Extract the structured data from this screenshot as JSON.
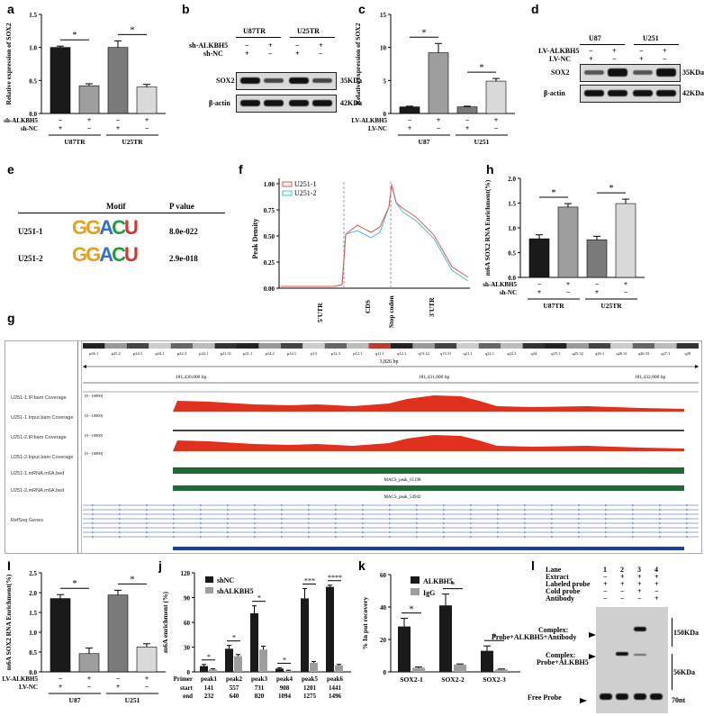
{
  "labels": {
    "a": "a",
    "b": "b",
    "c": "c",
    "d": "d",
    "e": "e",
    "f": "f",
    "g": "g",
    "h": "h",
    "I": "I",
    "j": "j",
    "k": "k",
    "l": "l"
  },
  "sig": "*",
  "panel_a": {
    "chart_data": {
      "type": "bar",
      "ylabel": "Relative expression of SOX2",
      "ylim": [
        0,
        1.5
      ],
      "yticks": [
        "0.0",
        "0.5",
        "1.0",
        "1.5"
      ],
      "values": [
        1.0,
        0.42,
        1.0,
        0.4
      ],
      "errors": [
        0.02,
        0.03,
        0.1,
        0.04
      ],
      "colors": [
        "#1a1a1a",
        "#9e9e9e",
        "#7a7a7a",
        "#d9d9d9"
      ],
      "rows": [
        {
          "label": "sh-ALKBH5",
          "signs": [
            "−",
            "+",
            "−",
            "+"
          ]
        },
        {
          "label": "sh-NC",
          "signs": [
            "+",
            "−",
            "+",
            "−"
          ]
        }
      ],
      "groups": [
        "U87TR",
        "U25TR"
      ]
    }
  },
  "panel_b": {
    "groups": [
      "U87TR",
      "U25TR"
    ],
    "row1_label": "sh-ALKBH5",
    "row2_label": "sh-NC",
    "row1_signs": [
      "−",
      "+",
      "−",
      "+"
    ],
    "row2_signs": [
      "+",
      "−",
      "+",
      "−"
    ],
    "bands": [
      {
        "name": "SOX2",
        "size": "35KDa"
      },
      {
        "name": "β-actin",
        "size": "42KDa"
      }
    ]
  },
  "panel_c": {
    "chart_data": {
      "type": "bar",
      "ylabel": "Relative expression of SOX2",
      "ylim": [
        0,
        15
      ],
      "yticks": [
        "0",
        "5",
        "10",
        "15"
      ],
      "values": [
        1.0,
        9.2,
        1.0,
        4.9
      ],
      "errors": [
        0.1,
        1.4,
        0.1,
        0.4
      ],
      "colors": [
        "#1a1a1a",
        "#9e9e9e",
        "#7a7a7a",
        "#d9d9d9"
      ],
      "rows": [
        {
          "label": "LV-ALKBH5",
          "signs": [
            "−",
            "+",
            "−",
            "+"
          ]
        },
        {
          "label": "LV-NC",
          "signs": [
            "+",
            "−",
            "+",
            "−"
          ]
        }
      ],
      "groups": [
        "U87",
        "U251"
      ]
    }
  },
  "panel_d": {
    "groups": [
      "U87",
      "U251"
    ],
    "row1_label": "LV-ALKBH5",
    "row2_label": "LV-NC",
    "row1_signs": [
      "−",
      "+",
      "−",
      "+"
    ],
    "row2_signs": [
      "+",
      "−",
      "+",
      "−"
    ],
    "bands": [
      {
        "name": "SOX2",
        "size": "35KDa"
      },
      {
        "name": "β-actin",
        "size": "42KDa"
      }
    ]
  },
  "panel_e": {
    "header_motif": "Motif",
    "header_p": "P value",
    "rows": [
      {
        "sample": "U251-1",
        "motif": "GGACU",
        "p": "8.0e-022"
      },
      {
        "sample": "U251-2",
        "motif": "GGACU",
        "p": "2.9e-018"
      }
    ]
  },
  "panel_f": {
    "chart_data": {
      "type": "line",
      "ylabel": "Peak Density",
      "ylim": [
        0,
        1.0
      ],
      "yticks": [
        "0.00",
        "0.25",
        "0.50",
        "0.75",
        "1.00"
      ],
      "xticks": [
        "5'UTR",
        "CDS",
        "Stop codon",
        "3'UTR"
      ],
      "series": [
        {
          "name": "U251-1",
          "color": "#e0524f"
        },
        {
          "name": "U251-2",
          "color": "#3fc2c0"
        }
      ]
    }
  },
  "panel_h": {
    "chart_data": {
      "type": "bar",
      "ylabel": "m6A SOX2 RNA Enrichment(%)",
      "ylim": [
        0,
        2.0
      ],
      "yticks": [
        "0.0",
        "0.5",
        "1.0",
        "1.5",
        "2.0"
      ],
      "values": [
        0.78,
        1.42,
        0.76,
        1.49
      ],
      "errors": [
        0.08,
        0.07,
        0.07,
        0.09
      ],
      "colors": [
        "#1a1a1a",
        "#9e9e9e",
        "#7a7a7a",
        "#d9d9d9"
      ],
      "rows": [
        {
          "label": "sh-ALKBH5",
          "signs": [
            "−",
            "+",
            "−",
            "+"
          ]
        },
        {
          "label": "sh-NC",
          "signs": [
            "+",
            "−",
            "+",
            "−"
          ]
        }
      ],
      "groups": [
        "U87TR",
        "U25TR"
      ]
    }
  },
  "panel_g": {
    "bands": [
      "p26.1",
      "p25.2",
      "p24.3",
      "p24.1",
      "p22.3",
      "p22.1",
      "p21.31",
      "p21.1",
      "p14.2",
      "p14.1",
      "p13",
      "p12.3",
      "p12.1",
      "q11.1",
      "q12.1",
      "q13.12",
      "q13.31",
      "q21.1",
      "q22.1",
      "q22.3",
      "q24",
      "q25.1",
      "q25.32",
      "q26.1",
      "q26.31",
      "q26.33",
      "q27.3",
      "q29"
    ],
    "span": "3,826 bp",
    "coords": [
      "181,430,000 bp",
      "181,431,000 bp",
      "181,432,000 bp"
    ],
    "range": "[0 - 10000]",
    "tracks": [
      "U251-1.IP.bam Coverage",
      "U251-1.Input.bam Coverage",
      "U251-2.IP.bam Coverage",
      "U251-2.Input.bam Coverage",
      "U251-1.mRNA.m6A.bed",
      "U251-2.mRNA.m6A.bed",
      "RefSeq Genes"
    ],
    "peaks": [
      "MACS_peak_61198",
      "MACS_peak_54942"
    ]
  },
  "panel_I": {
    "chart_data": {
      "type": "bar",
      "ylabel": "m6A SOX2 RNA Enrichment(%)",
      "ylim": [
        0,
        2.5
      ],
      "yticks": [
        "0.0",
        "0.5",
        "1.0",
        "1.5",
        "2.0",
        "2.5"
      ],
      "values": [
        1.85,
        0.46,
        1.94,
        0.63
      ],
      "errors": [
        0.1,
        0.14,
        0.12,
        0.08
      ],
      "colors": [
        "#1a1a1a",
        "#9e9e9e",
        "#7a7a7a",
        "#d9d9d9"
      ],
      "rows": [
        {
          "label": "LV-ALKBH5",
          "signs": [
            "−",
            "+",
            "−",
            "+"
          ]
        },
        {
          "label": "LV-NC",
          "signs": [
            "+",
            "−",
            "+",
            "−"
          ]
        }
      ],
      "groups": [
        "U87",
        "U251"
      ]
    }
  },
  "panel_j": {
    "chart_data": {
      "type": "bar",
      "ylabel": "m6A enrichment (%)",
      "ylim": [
        0,
        120
      ],
      "yticks": [
        "0",
        "30",
        "60",
        "90",
        "120"
      ],
      "categories": [
        "peak1",
        "peak2",
        "peak3",
        "peak4",
        "peak5",
        "peak6"
      ],
      "series": [
        {
          "name": "shNC",
          "color": "#1a1a1a",
          "values": [
            7,
            28,
            71,
            4,
            89,
            103
          ],
          "errors": [
            2,
            4,
            9,
            1,
            12,
            2
          ]
        },
        {
          "name": "shALKBH5",
          "color": "#9e9e9e",
          "values": [
            3,
            19,
            27,
            1.5,
            11,
            8
          ],
          "errors": [
            0.8,
            2,
            4,
            0.5,
            1.5,
            1
          ]
        }
      ],
      "sig": [
        "*",
        "*",
        "*",
        "*",
        "***",
        "****"
      ],
      "primer_label": "Primer",
      "start_label": "start",
      "end_label": "end",
      "start": [
        "141",
        "557",
        "731",
        "908",
        "1201",
        "1441"
      ],
      "end": [
        "232",
        "640",
        "820",
        "1094",
        "1275",
        "1496"
      ]
    }
  },
  "panel_k": {
    "chart_data": {
      "type": "bar",
      "ylabel": "% In put recovery",
      "ylim": [
        0,
        60
      ],
      "yticks": [
        "0",
        "20",
        "40",
        "60"
      ],
      "categories": [
        "SOX2-1",
        "SOX2-2",
        "SOX2-3"
      ],
      "series": [
        {
          "name": "ALKBH5",
          "color": "#1a1a1a",
          "values": [
            28,
            41,
            13
          ],
          "errors": [
            5,
            7,
            3
          ]
        },
        {
          "name": "IgG",
          "color": "#9e9e9e",
          "values": [
            2.5,
            4.5,
            1.5
          ],
          "errors": [
            0.5,
            0.4,
            0.3
          ]
        }
      ]
    }
  },
  "panel_l": {
    "rows": [
      {
        "label": "Lane",
        "v": [
          "1",
          "2",
          "3",
          "4"
        ]
      },
      {
        "label": "Extract",
        "v": [
          "−",
          "+",
          "+",
          "+"
        ]
      },
      {
        "label": "Labeled probe",
        "v": [
          "+",
          "+",
          "+",
          "+"
        ]
      },
      {
        "label": "Cold probe",
        "v": [
          "−",
          "−",
          "+",
          "−"
        ]
      },
      {
        "label": "Antibody",
        "v": [
          "−",
          "−",
          "−",
          "+"
        ]
      }
    ],
    "complex1": "Complex:",
    "complex1b": "Probe+ALKBH5+Antibody",
    "complex2": "Complex:",
    "complex2b": "Probe+ALKBH5",
    "free": "Free Probe",
    "sizes": [
      "150KDa",
      "56KDa",
      "70nt"
    ]
  }
}
